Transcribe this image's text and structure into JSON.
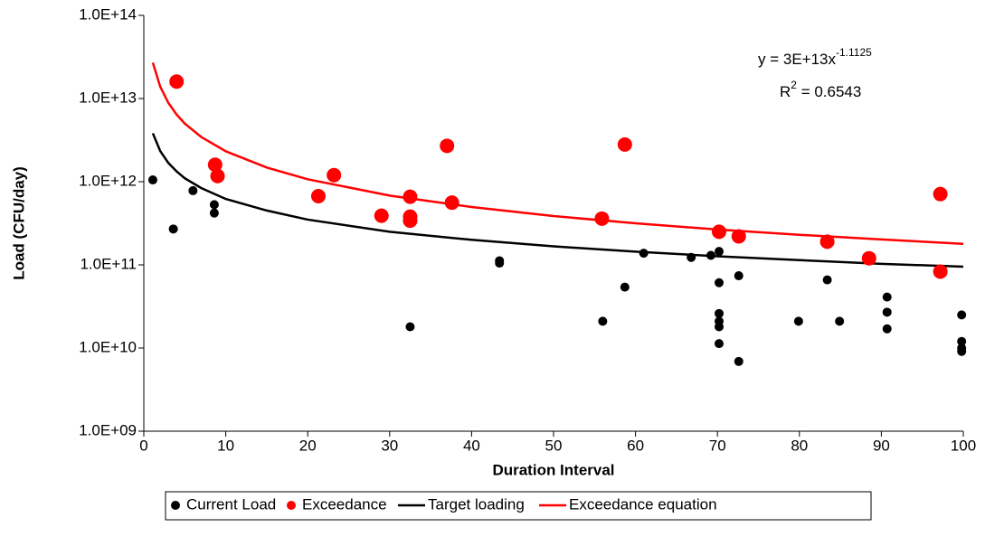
{
  "chart_data": {
    "type": "scatter",
    "x_label": "Duration Interval",
    "y_label": "Load (CFU/day)",
    "ylog": true,
    "xlim": [
      0,
      100
    ],
    "xticks": [
      0,
      10,
      20,
      30,
      40,
      50,
      60,
      70,
      80,
      90,
      100
    ],
    "ylim": [
      1000000000,
      100000000000000
    ],
    "yticks": [
      {
        "value": 1000000000,
        "label": "1.0E+09"
      },
      {
        "value": 10000000000,
        "label": "1.0E+10"
      },
      {
        "value": 100000000000,
        "label": "1.0E+11"
      },
      {
        "value": 1000000000000,
        "label": "1.0E+12"
      },
      {
        "value": 10000000000000,
        "label": "1.0E+13"
      },
      {
        "value": 100000000000000,
        "label": "1.0E+14"
      }
    ],
    "annotation": {
      "equation": "y = 3E+13x",
      "exponent": "-1.1125",
      "r2_label": "R",
      "r2_sup": "2",
      "r2_value": " = 0.6543"
    },
    "series": [
      {
        "name": "Current Load",
        "type": "scatter",
        "color": "#000000",
        "x": [
          1.1,
          3.6,
          6,
          8.6,
          8.6,
          43.4,
          43.4,
          32.5,
          56,
          58.7,
          61,
          66.8,
          69.2,
          70.2,
          70.2,
          70.2,
          70.2,
          70.2,
          70.2,
          72.6,
          72.6,
          79.9,
          83.4,
          84.9,
          90.7,
          90.7,
          90.7,
          99.8,
          99.8,
          99.8,
          99.8
        ],
        "values": [
          1050000000000,
          270000000000,
          780000000000,
          530000000000,
          420000000000,
          112000000000,
          105000000000,
          18000000000,
          21000000000,
          54000000000,
          138000000000,
          123000000000,
          130000000000,
          145000000000,
          61000000000,
          26000000000,
          21000000000,
          18000000000,
          11300000000,
          74000000000,
          6900000000,
          21000000000,
          66000000000,
          21000000000,
          41000000000,
          27000000000,
          17000000000,
          25000000000,
          12000000000,
          10000000000,
          9100000000
        ]
      },
      {
        "name": "Exceedance",
        "type": "scatter",
        "color": "#ff0000",
        "x": [
          4,
          8.7,
          9,
          21.3,
          23.2,
          29,
          32.5,
          32.5,
          32.5,
          37,
          37.6,
          55.9,
          58.7,
          70.2,
          72.6,
          83.4,
          88.5,
          97.2,
          97.2
        ],
        "values": [
          16000000000000,
          1600000000000,
          1170000000000,
          670000000000,
          1200000000000,
          390000000000,
          660000000000,
          380000000000,
          340000000000,
          2700000000000,
          560000000000,
          360000000000,
          2800000000000,
          250000000000,
          220000000000,
          190000000000,
          120000000000,
          710000000000,
          83000000000
        ]
      },
      {
        "name": "Target loading",
        "type": "line",
        "color": "#000000",
        "x": [
          1.1,
          2,
          3,
          4,
          5,
          7,
          10,
          15,
          20,
          30,
          40,
          50,
          60,
          70,
          80,
          90,
          100
        ],
        "values": [
          3820000000000,
          2340000000000,
          1680000000000,
          1330000000000,
          1100000000000,
          840000000000,
          620000000000,
          450000000000,
          350000000000,
          250000000000,
          200000000000,
          167000000000,
          144000000000,
          127000000000,
          114000000000,
          103000000000,
          95000000000
        ]
      },
      {
        "name": "Exceedance equation",
        "type": "line",
        "color": "#ff0000",
        "x": [
          1.1,
          2,
          3,
          4,
          5,
          7,
          10,
          15,
          20,
          30,
          40,
          50,
          60,
          70,
          80,
          90,
          100
        ],
        "values": [
          27000000000000,
          13900000000000,
          8850000000000,
          6420000000000,
          5000000000000,
          3450000000000,
          2320000000000,
          1480000000000,
          1070000000000,
          680000000000,
          496000000000,
          386000000000,
          316000000000,
          266000000000,
          230000000000,
          202000000000,
          179000000000
        ]
      }
    ]
  }
}
